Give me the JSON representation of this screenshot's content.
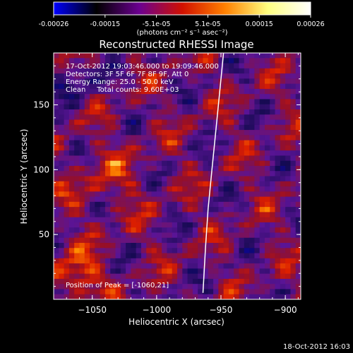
{
  "colorbar": {
    "ticks": [
      "-0.00026",
      "-0.00015",
      "-5.1e-05",
      "5.1e-05",
      "0.00015",
      "0.00026"
    ],
    "unit_label": "(photons cm⁻² s⁻¹ asec⁻²)",
    "colormap": [
      "#0000ff",
      "#000000",
      "#6b0090",
      "#d01000",
      "#ff8000",
      "#ffff80",
      "#ffffff"
    ]
  },
  "chart_data": {
    "type": "heatmap",
    "title": "Reconstructed RHESSI Image",
    "xlabel": "Heliocentric X (arcsec)",
    "ylabel": "Heliocentric Y (arcsec)",
    "xlim": [
      -1080,
      -888
    ],
    "ylim": [
      0,
      190
    ],
    "xticks": [
      -1050,
      -1000,
      -950,
      -900
    ],
    "yticks": [
      50,
      100,
      150
    ],
    "xtick_labels": [
      "−1050",
      "−1000",
      "−950",
      "−900"
    ],
    "ytick_labels": [
      "50",
      "100",
      "150"
    ],
    "limb_curve": [
      [
        -948,
        190
      ],
      [
        -951,
        160
      ],
      [
        -954,
        130
      ],
      [
        -957,
        100
      ],
      [
        -960,
        70
      ],
      [
        -962,
        40
      ],
      [
        -964,
        5
      ]
    ],
    "annotations": [
      "17-Oct-2012 19:03:46.000 to 19:09:46.000",
      "Detectors: 3F 5F 6F 7F 8F 9F, Att 0",
      "Energy Range: 25.0 - 50.0 keV",
      "Clean     Total counts: 9.60E+03"
    ],
    "peak_label": "Position of Peak = [-1060,21]",
    "peak": [
      -1060,
      21
    ]
  },
  "footer": {
    "timestamp": "18-Oct-2012 16:03"
  }
}
